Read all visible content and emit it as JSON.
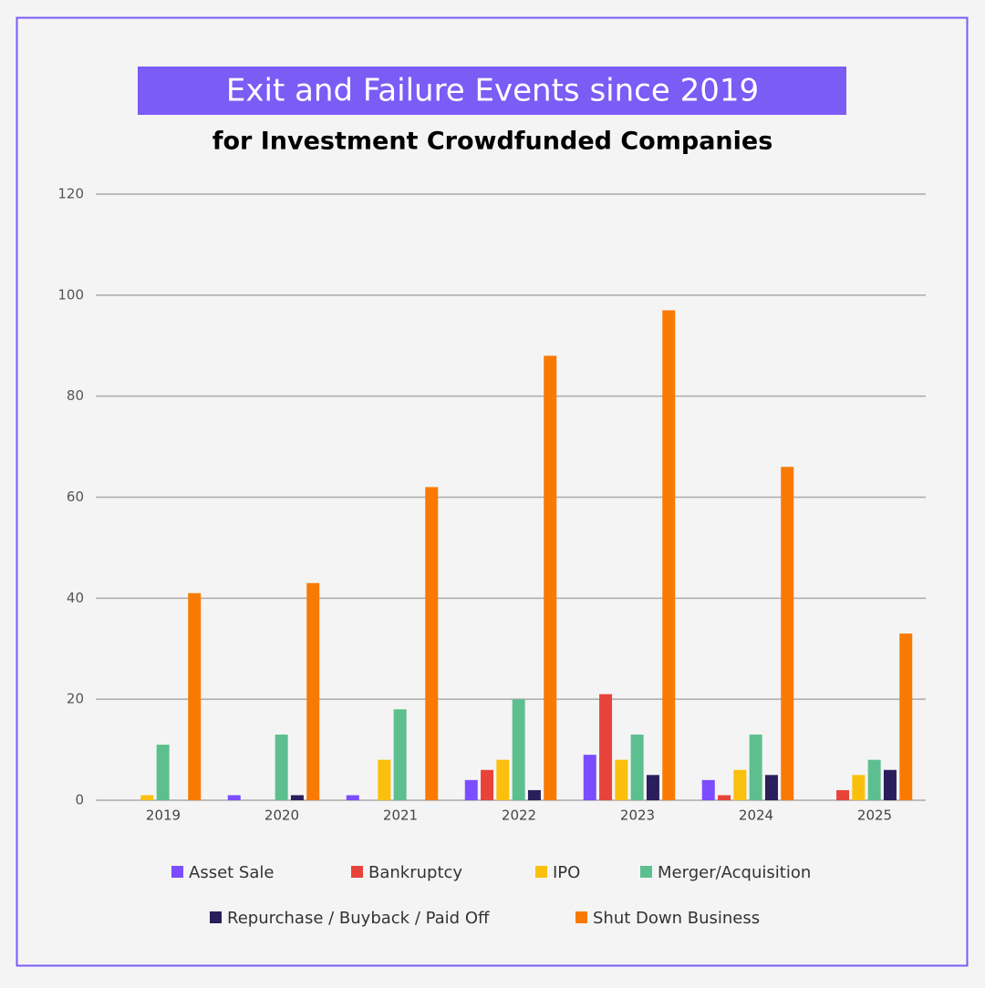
{
  "chart_data": {
    "type": "bar",
    "title": "Exit and Failure Events since 2019",
    "subtitle": "for Investment Crowdfunded Companies",
    "categories": [
      "2019",
      "2020",
      "2021",
      "2022",
      "2023",
      "2024",
      "2025"
    ],
    "series": [
      {
        "name": "Asset Sale",
        "color": "#7b4dff",
        "values": [
          0,
          1,
          1,
          4,
          9,
          4,
          0
        ]
      },
      {
        "name": "Bankruptcy",
        "color": "#e8433a",
        "values": [
          0,
          0,
          0,
          6,
          21,
          1,
          2
        ]
      },
      {
        "name": "IPO",
        "color": "#fbbf0d",
        "values": [
          1,
          0,
          8,
          8,
          8,
          6,
          5
        ]
      },
      {
        "name": "Merger/Acquisition",
        "color": "#5dbf8f",
        "values": [
          11,
          13,
          18,
          20,
          13,
          13,
          8
        ]
      },
      {
        "name": "Repurchase / Buyback / Paid Off",
        "color": "#2a1f5c",
        "values": [
          0,
          1,
          0,
          2,
          5,
          5,
          6
        ]
      },
      {
        "name": "Shut Down Business",
        "color": "#f97a03",
        "values": [
          41,
          43,
          62,
          88,
          97,
          66,
          33
        ]
      }
    ],
    "ylim": [
      0,
      120
    ],
    "yticks": [
      0,
      20,
      40,
      60,
      80,
      100,
      120
    ],
    "grid": true
  }
}
